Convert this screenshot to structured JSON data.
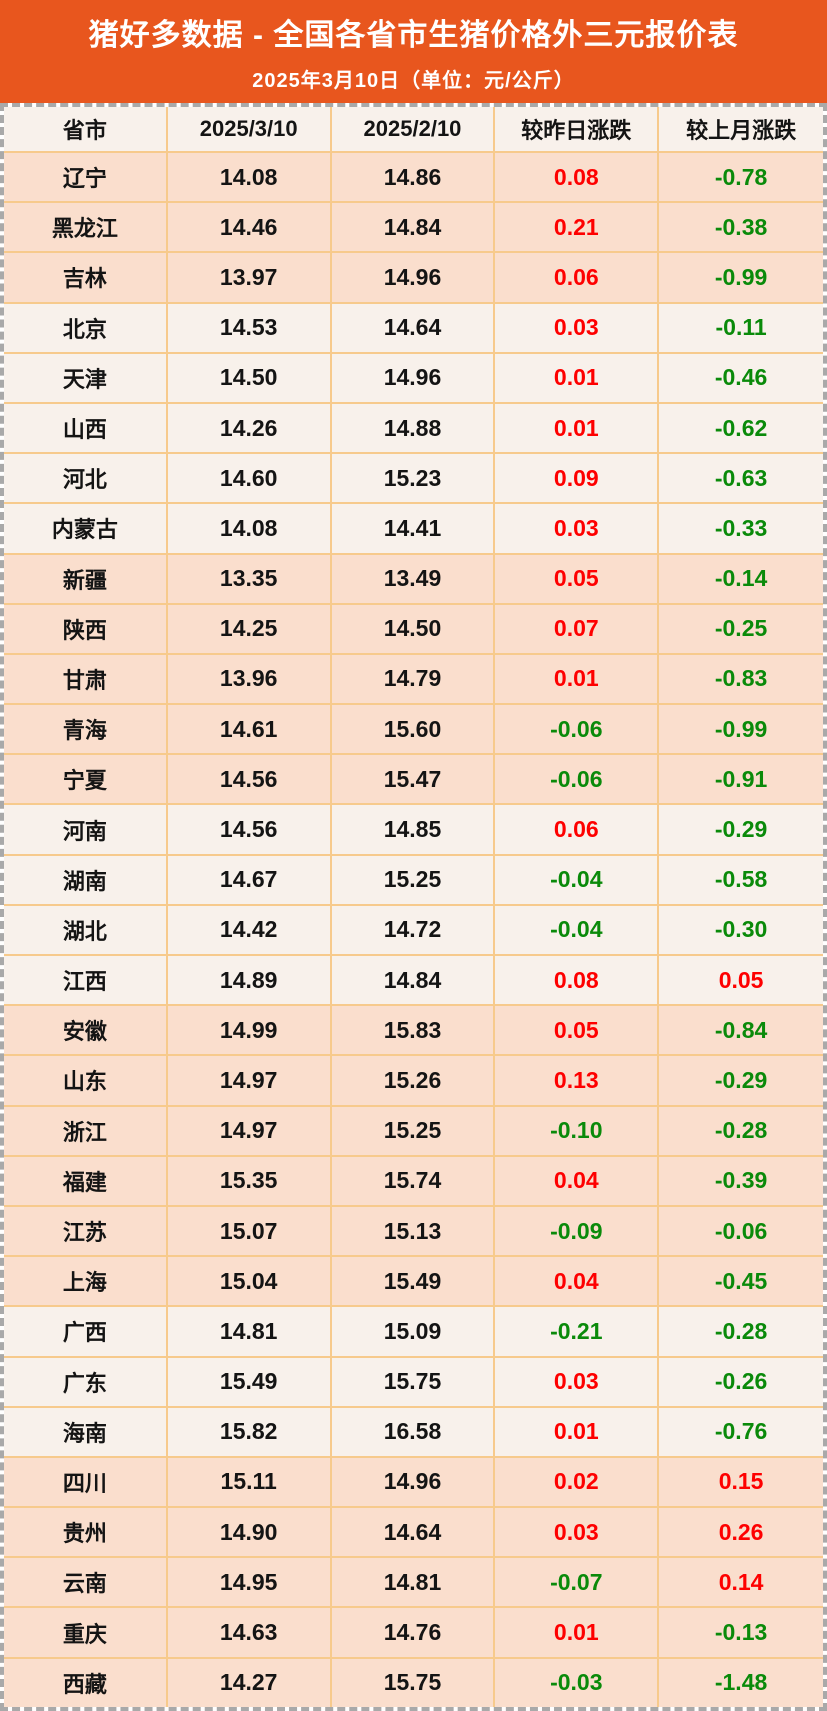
{
  "banner": {
    "title": "猪好多数据 - 全国各省市生猪价格外三元报价表",
    "subtitle": "2025年3月10日（单位：元/公斤）"
  },
  "table": {
    "columns": [
      "省市",
      "2025/3/10",
      "2025/2/10",
      "较昨日涨跌",
      "较上月涨跌"
    ],
    "rows": [
      {
        "province": "辽宁",
        "price_0310": "14.08",
        "price_0210": "14.86",
        "day_change": "0.08",
        "month_change": "-0.78",
        "region_group": 1
      },
      {
        "province": "黑龙江",
        "price_0310": "14.46",
        "price_0210": "14.84",
        "day_change": "0.21",
        "month_change": "-0.38",
        "region_group": 1
      },
      {
        "province": "吉林",
        "price_0310": "13.97",
        "price_0210": "14.96",
        "day_change": "0.06",
        "month_change": "-0.99",
        "region_group": 1
      },
      {
        "province": "北京",
        "price_0310": "14.53",
        "price_0210": "14.64",
        "day_change": "0.03",
        "month_change": "-0.11",
        "region_group": 2
      },
      {
        "province": "天津",
        "price_0310": "14.50",
        "price_0210": "14.96",
        "day_change": "0.01",
        "month_change": "-0.46",
        "region_group": 2
      },
      {
        "province": "山西",
        "price_0310": "14.26",
        "price_0210": "14.88",
        "day_change": "0.01",
        "month_change": "-0.62",
        "region_group": 2
      },
      {
        "province": "河北",
        "price_0310": "14.60",
        "price_0210": "15.23",
        "day_change": "0.09",
        "month_change": "-0.63",
        "region_group": 2
      },
      {
        "province": "内蒙古",
        "price_0310": "14.08",
        "price_0210": "14.41",
        "day_change": "0.03",
        "month_change": "-0.33",
        "region_group": 2
      },
      {
        "province": "新疆",
        "price_0310": "13.35",
        "price_0210": "13.49",
        "day_change": "0.05",
        "month_change": "-0.14",
        "region_group": 3
      },
      {
        "province": "陕西",
        "price_0310": "14.25",
        "price_0210": "14.50",
        "day_change": "0.07",
        "month_change": "-0.25",
        "region_group": 3
      },
      {
        "province": "甘肃",
        "price_0310": "13.96",
        "price_0210": "14.79",
        "day_change": "0.01",
        "month_change": "-0.83",
        "region_group": 3
      },
      {
        "province": "青海",
        "price_0310": "14.61",
        "price_0210": "15.60",
        "day_change": "-0.06",
        "month_change": "-0.99",
        "region_group": 3
      },
      {
        "province": "宁夏",
        "price_0310": "14.56",
        "price_0210": "15.47",
        "day_change": "-0.06",
        "month_change": "-0.91",
        "region_group": 3
      },
      {
        "province": "河南",
        "price_0310": "14.56",
        "price_0210": "14.85",
        "day_change": "0.06",
        "month_change": "-0.29",
        "region_group": 4
      },
      {
        "province": "湖南",
        "price_0310": "14.67",
        "price_0210": "15.25",
        "day_change": "-0.04",
        "month_change": "-0.58",
        "region_group": 4
      },
      {
        "province": "湖北",
        "price_0310": "14.42",
        "price_0210": "14.72",
        "day_change": "-0.04",
        "month_change": "-0.30",
        "region_group": 4
      },
      {
        "province": "江西",
        "price_0310": "14.89",
        "price_0210": "14.84",
        "day_change": "0.08",
        "month_change": "0.05",
        "region_group": 4
      },
      {
        "province": "安徽",
        "price_0310": "14.99",
        "price_0210": "15.83",
        "day_change": "0.05",
        "month_change": "-0.84",
        "region_group": 5
      },
      {
        "province": "山东",
        "price_0310": "14.97",
        "price_0210": "15.26",
        "day_change": "0.13",
        "month_change": "-0.29",
        "region_group": 5
      },
      {
        "province": "浙江",
        "price_0310": "14.97",
        "price_0210": "15.25",
        "day_change": "-0.10",
        "month_change": "-0.28",
        "region_group": 5
      },
      {
        "province": "福建",
        "price_0310": "15.35",
        "price_0210": "15.74",
        "day_change": "0.04",
        "month_change": "-0.39",
        "region_group": 5
      },
      {
        "province": "江苏",
        "price_0310": "15.07",
        "price_0210": "15.13",
        "day_change": "-0.09",
        "month_change": "-0.06",
        "region_group": 5
      },
      {
        "province": "上海",
        "price_0310": "15.04",
        "price_0210": "15.49",
        "day_change": "0.04",
        "month_change": "-0.45",
        "region_group": 5
      },
      {
        "province": "广西",
        "price_0310": "14.81",
        "price_0210": "15.09",
        "day_change": "-0.21",
        "month_change": "-0.28",
        "region_group": 6
      },
      {
        "province": "广东",
        "price_0310": "15.49",
        "price_0210": "15.75",
        "day_change": "0.03",
        "month_change": "-0.26",
        "region_group": 6
      },
      {
        "province": "海南",
        "price_0310": "15.82",
        "price_0210": "16.58",
        "day_change": "0.01",
        "month_change": "-0.76",
        "region_group": 6
      },
      {
        "province": "四川",
        "price_0310": "15.11",
        "price_0210": "14.96",
        "day_change": "0.02",
        "month_change": "0.15",
        "region_group": 7
      },
      {
        "province": "贵州",
        "price_0310": "14.90",
        "price_0210": "14.64",
        "day_change": "0.03",
        "month_change": "0.26",
        "region_group": 7
      },
      {
        "province": "云南",
        "price_0310": "14.95",
        "price_0210": "14.81",
        "day_change": "-0.07",
        "month_change": "0.14",
        "region_group": 7
      },
      {
        "province": "重庆",
        "price_0310": "14.63",
        "price_0210": "14.76",
        "day_change": "0.01",
        "month_change": "-0.13",
        "region_group": 7
      },
      {
        "province": "西藏",
        "price_0310": "14.27",
        "price_0210": "15.75",
        "day_change": "-0.03",
        "month_change": "-1.48",
        "region_group": 7
      }
    ]
  },
  "colors": {
    "banner_orange": "#e8561e",
    "row_peach": "#fadecd",
    "row_light": "#f8f1eb",
    "cell_border": "#f7ca8c",
    "up_red": "#fe0000",
    "down_green": "#0a8a0a",
    "marquee_gray": "#a9a9a9"
  }
}
